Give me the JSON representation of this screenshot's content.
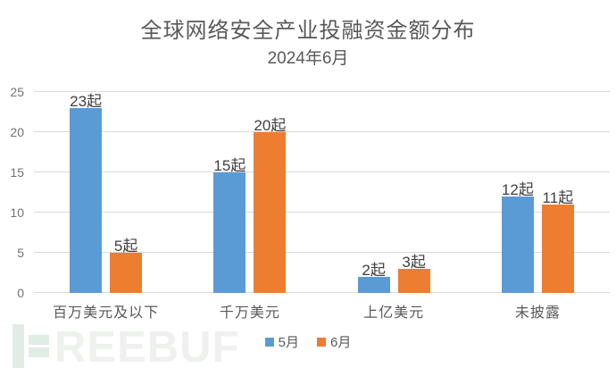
{
  "title": "全球网络安全产业投融资金额分布",
  "subtitle": "2024年6月",
  "chart_data": {
    "type": "bar",
    "categories": [
      "百万美元及以下",
      "千万美元",
      "上亿美元",
      "未披露"
    ],
    "series": [
      {
        "name": "5月",
        "color": "#5B9BD5",
        "values": [
          23,
          15,
          2,
          12
        ]
      },
      {
        "name": "6月",
        "color": "#ED7D31",
        "values": [
          5,
          20,
          3,
          11
        ]
      }
    ],
    "data_label_suffix": "起",
    "ylim": [
      0,
      25
    ],
    "yticks": [
      0,
      5,
      10,
      15,
      20,
      25
    ],
    "grid": true,
    "legend_position": "bottom",
    "colors": {
      "gridline": "#d9d9d9",
      "title_text": "#595959",
      "axis_text": "#595959",
      "data_label_text": "#404040"
    }
  },
  "watermark": {
    "text": "REEBUF",
    "logo": "freebuf-logo-mark"
  }
}
